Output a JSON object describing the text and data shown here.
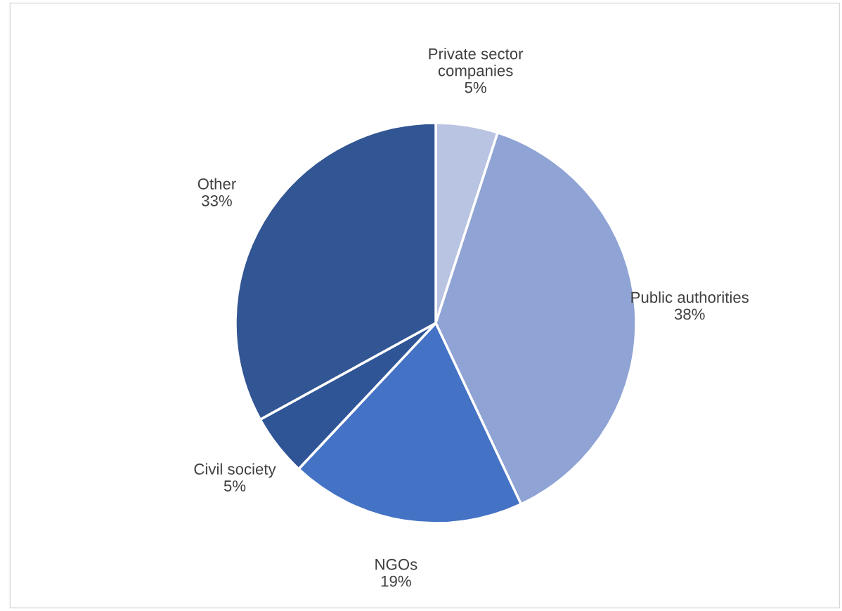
{
  "chart_data": {
    "type": "pie",
    "categories": [
      "Private sector\ncompanies",
      "Public authorities",
      "NGOs",
      "Civil society",
      "Other"
    ],
    "values": [
      5,
      38,
      19,
      5,
      33
    ],
    "value_labels": [
      "5%",
      "38%",
      "19%",
      "5%",
      "33%"
    ],
    "colors": [
      "#b9c3e2",
      "#8fa3d4",
      "#4472c4",
      "#2f5596",
      "#325593"
    ]
  }
}
